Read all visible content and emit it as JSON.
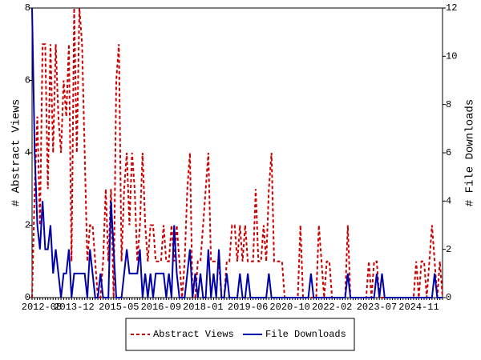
{
  "chart_data": {
    "type": "line",
    "ylabel": "# Abstract Views",
    "y2label": "# File Downloads",
    "categories": [
      "2012-08",
      null,
      null,
      null,
      null,
      null,
      null,
      null,
      null,
      null,
      null,
      null,
      null,
      null,
      null,
      null,
      "2013-12",
      null,
      null,
      null,
      null,
      null,
      null,
      null,
      null,
      null,
      null,
      null,
      null,
      null,
      null,
      null,
      null,
      "2015-05",
      null,
      null,
      null,
      null,
      null,
      null,
      null,
      null,
      null,
      null,
      null,
      null,
      null,
      null,
      null,
      "2016-09",
      null,
      null,
      null,
      null,
      null,
      null,
      null,
      null,
      null,
      null,
      null,
      null,
      null,
      null,
      null,
      "2018-01",
      null,
      null,
      null,
      null,
      null,
      null,
      null,
      null,
      null,
      null,
      null,
      null,
      null,
      null,
      null,
      null,
      "2019-06",
      null,
      null,
      null,
      null,
      null,
      null,
      null,
      null,
      null,
      null,
      null,
      null,
      null,
      null,
      null,
      "2020-10",
      null,
      null,
      null,
      null,
      null,
      null,
      null,
      null,
      null,
      null,
      null,
      null,
      null,
      null,
      null,
      "2022-02",
      null,
      null,
      null,
      null,
      null,
      null,
      null,
      null,
      null,
      null,
      null,
      null,
      null,
      null,
      null,
      null,
      "2023-07",
      null,
      null,
      null,
      null,
      null,
      null,
      null,
      null,
      null,
      null,
      null,
      null,
      null,
      null,
      null,
      "2024-11",
      null,
      null,
      null,
      null,
      null,
      null,
      null,
      null,
      null
    ],
    "series": [
      {
        "name": "Abstract Views",
        "color": "#cc0000",
        "dash": true,
        "values": [
          0,
          3,
          5,
          2,
          7,
          7,
          3,
          7,
          4,
          7,
          5,
          4,
          6,
          5,
          7,
          1,
          8,
          4,
          8,
          7,
          4,
          1,
          2,
          2,
          1,
          0,
          0,
          1,
          3,
          1,
          3,
          0,
          6,
          7,
          1,
          3,
          4,
          2,
          4,
          3,
          1,
          2,
          4,
          2,
          1,
          2,
          2,
          1,
          1,
          1,
          2,
          1,
          1,
          2,
          1,
          2,
          1,
          0,
          1,
          3,
          4,
          0,
          0,
          1,
          1,
          2,
          3,
          4,
          1,
          1,
          1,
          1,
          0,
          0,
          1,
          1,
          2,
          2,
          1,
          2,
          1,
          2,
          1,
          1,
          1,
          3,
          1,
          1,
          2,
          1,
          3,
          4,
          1,
          1,
          1,
          1,
          0,
          0,
          0,
          0,
          0,
          0,
          2,
          0,
          0,
          0,
          0,
          0,
          0,
          2,
          1,
          0,
          1,
          1,
          0,
          0,
          0,
          0,
          0,
          0,
          2,
          0,
          0,
          0,
          0,
          0,
          0,
          0,
          1,
          0,
          1,
          1,
          0,
          0,
          0,
          0,
          0,
          0,
          0,
          0,
          0,
          0,
          0,
          0,
          0,
          0,
          1,
          0,
          1,
          1,
          0,
          1,
          2,
          1,
          0,
          1,
          0
        ]
      },
      {
        "name": "File Downloads",
        "color": "#0000aa",
        "dash": false,
        "axis": "y2",
        "values": [
          12,
          6,
          3,
          2,
          4,
          2,
          2,
          3,
          1,
          2,
          1,
          0,
          1,
          1,
          2,
          0,
          1,
          1,
          1,
          1,
          1,
          0,
          2,
          1,
          0,
          0,
          1,
          0,
          0,
          0,
          4,
          2,
          0,
          0,
          0,
          1,
          2,
          1,
          1,
          1,
          1,
          2,
          0,
          1,
          0,
          1,
          0,
          1,
          1,
          1,
          1,
          0,
          1,
          0,
          3,
          1,
          0,
          0,
          0,
          1,
          2,
          0,
          1,
          0,
          1,
          0,
          0,
          2,
          0,
          1,
          0,
          2,
          0,
          0,
          1,
          0,
          0,
          0,
          0,
          1,
          0,
          0,
          1,
          0,
          0,
          0,
          0,
          0,
          0,
          0,
          1,
          0,
          0,
          0,
          0,
          0,
          0,
          0,
          0,
          0,
          0,
          0,
          0,
          0,
          0,
          0,
          1,
          0,
          0,
          0,
          0,
          0,
          0,
          0,
          0,
          0,
          0,
          0,
          0,
          0,
          1,
          0,
          0,
          0,
          0,
          0,
          0,
          0,
          0,
          0,
          0,
          1,
          0,
          1,
          0,
          0,
          0,
          0,
          0,
          0,
          0,
          0,
          0,
          0,
          0,
          0,
          0,
          0,
          0,
          0,
          0,
          0,
          0,
          1,
          0,
          0,
          0
        ]
      }
    ],
    "ylim": [
      0,
      8
    ],
    "yticks": [
      0,
      2,
      4,
      6,
      8
    ],
    "y2lim": [
      0,
      12
    ],
    "y2ticks": [
      0,
      2,
      4,
      6,
      8,
      10,
      12
    ],
    "legend": "bottom"
  }
}
